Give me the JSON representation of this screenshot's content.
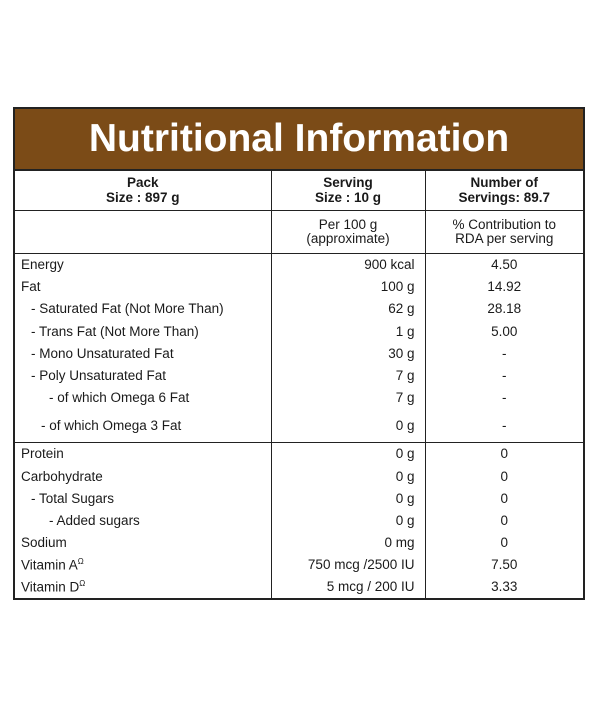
{
  "title": "Nutritional Information",
  "header": {
    "pack": "Pack",
    "pack_size": "Size : 897 g",
    "serving": "Serving",
    "serving_size": "Size : 10 g",
    "number_of": "Number of",
    "servings": "Servings: 89.7"
  },
  "subheader": {
    "per100_line1": "Per 100 g",
    "per100_line2": "(approximate)",
    "rda_line1": "% Contribution to",
    "rda_line2": "RDA per serving"
  },
  "rows": [
    {
      "name": "Energy",
      "per100": "900 kcal",
      "rda": "4.50"
    },
    {
      "name": "Fat",
      "per100": "100 g",
      "rda": "14.92"
    },
    {
      "name": "- Saturated Fat (Not More Than)",
      "per100": "62 g",
      "rda": "28.18"
    },
    {
      "name": "- Trans Fat (Not More Than)",
      "per100": "1 g",
      "rda": "5.00"
    },
    {
      "name": "- Mono Unsaturated Fat",
      "per100": "30 g",
      "rda": "-"
    },
    {
      "name": "- Poly Unsaturated Fat",
      "per100": "7 g",
      "rda": "-"
    },
    {
      "name": "- of which Omega 6 Fat",
      "per100": "7 g",
      "rda": "-"
    },
    {
      "name": "- of which Omega 3 Fat",
      "per100": "0 g",
      "rda": "-"
    },
    {
      "name": "Protein",
      "per100": "0 g",
      "rda": "0"
    },
    {
      "name": "Carbohydrate",
      "per100": "0 g",
      "rda": "0"
    },
    {
      "name": "- Total Sugars",
      "per100": "0 g",
      "rda": "0"
    },
    {
      "name": "- Added sugars",
      "per100": "0 g",
      "rda": "0"
    },
    {
      "name": "Sodium",
      "per100": "0 mg",
      "rda": "0"
    },
    {
      "name": "Vitamin A",
      "mark": "Ω",
      "per100": "750 mcg /2500 IU",
      "rda": "7.50"
    },
    {
      "name": "Vitamin D",
      "mark": "Ω",
      "per100": "5 mcg / 200 IU",
      "rda": "3.33"
    }
  ],
  "colors": {
    "banner": "#7b4b17",
    "border": "#222222"
  }
}
